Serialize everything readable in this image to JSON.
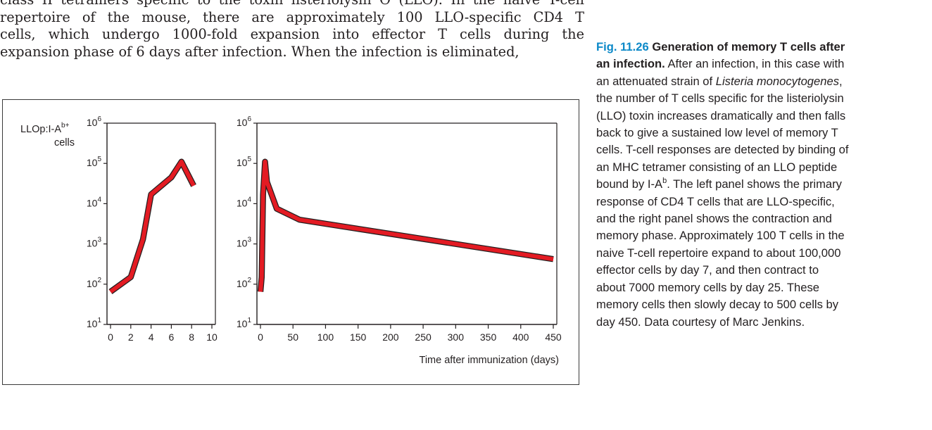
{
  "body_text": {
    "lines": [
      "class II tetramers specific to the toxin listeriolysin O (LLO). In the naive T-cell",
      "repertoire of the mouse, there are approximately 100 LLO-specific CD4 T",
      "cells, which undergo 1000-fold expansion into effector T cells during the",
      "expansion phase of 6 days after infection. When the infection is eliminated,"
    ]
  },
  "caption": {
    "fig_num": "Fig. 11.26",
    "title": "Generation of memory T cells after an infection.",
    "text_a": "After an infection, in this case with an attenuated strain of ",
    "italic": "Listeria monocytogenes",
    "text_b": ", the number of T cells specific for the listeriolysin (LLO) toxin increases dramatically and then falls back to give a sustained low level of memory T cells. T-cell responses are detected by binding of an MHC tetramer consisting of an LLO peptide bound by I-A",
    "sup_b": "b",
    "text_c": ". The left panel shows the primary response of CD4 T cells that are LLO-specific, and the right panel shows the contraction and memory phase. Approximately 100 T cells in the naive T-cell repertoire expand to about 100,000 effector cells by day 7, and then contract to about 7000 memory cells by day 25. These memory cells then slowly decay to 500 cells by day 450. Data courtesy of Marc Jenkins."
  },
  "chart_data": [
    {
      "type": "line",
      "ylabel_main": "LLOp:I-A",
      "ylabel_sup": "b+",
      "ylabel_line2": "cells",
      "yscale": "log",
      "ylim": [
        10,
        1000000
      ],
      "y_ticks": [
        {
          "base": "10",
          "exp": "1"
        },
        {
          "base": "10",
          "exp": "2"
        },
        {
          "base": "10",
          "exp": "3"
        },
        {
          "base": "10",
          "exp": "4"
        },
        {
          "base": "10",
          "exp": "5"
        },
        {
          "base": "10",
          "exp": "6"
        }
      ],
      "xlim": [
        0,
        10
      ],
      "x_ticks": [
        "0",
        "2",
        "4",
        "6",
        "8",
        "10"
      ],
      "xlabel": "",
      "series": [
        {
          "color": "#e31b23",
          "x": [
            0,
            2,
            3.2,
            4,
            6,
            7,
            8.2
          ],
          "y": [
            65,
            150,
            1300,
            17000,
            45000,
            110000,
            28000
          ]
        }
      ]
    },
    {
      "type": "line",
      "yscale": "log",
      "ylim": [
        10,
        1000000
      ],
      "y_ticks": [
        {
          "base": "10",
          "exp": "1"
        },
        {
          "base": "10",
          "exp": "2"
        },
        {
          "base": "10",
          "exp": "3"
        },
        {
          "base": "10",
          "exp": "4"
        },
        {
          "base": "10",
          "exp": "5"
        },
        {
          "base": "10",
          "exp": "6"
        }
      ],
      "xlim": [
        0,
        450
      ],
      "x_ticks": [
        "0",
        "50",
        "100",
        "150",
        "200",
        "250",
        "300",
        "350",
        "400",
        "450"
      ],
      "xlabel": "Time after immunization (days)",
      "series": [
        {
          "color": "#e31b23",
          "x": [
            0,
            2,
            4,
            7,
            10,
            25,
            60,
            450
          ],
          "y": [
            65,
            150,
            17000,
            110000,
            35000,
            7500,
            4000,
            420
          ]
        }
      ]
    }
  ]
}
